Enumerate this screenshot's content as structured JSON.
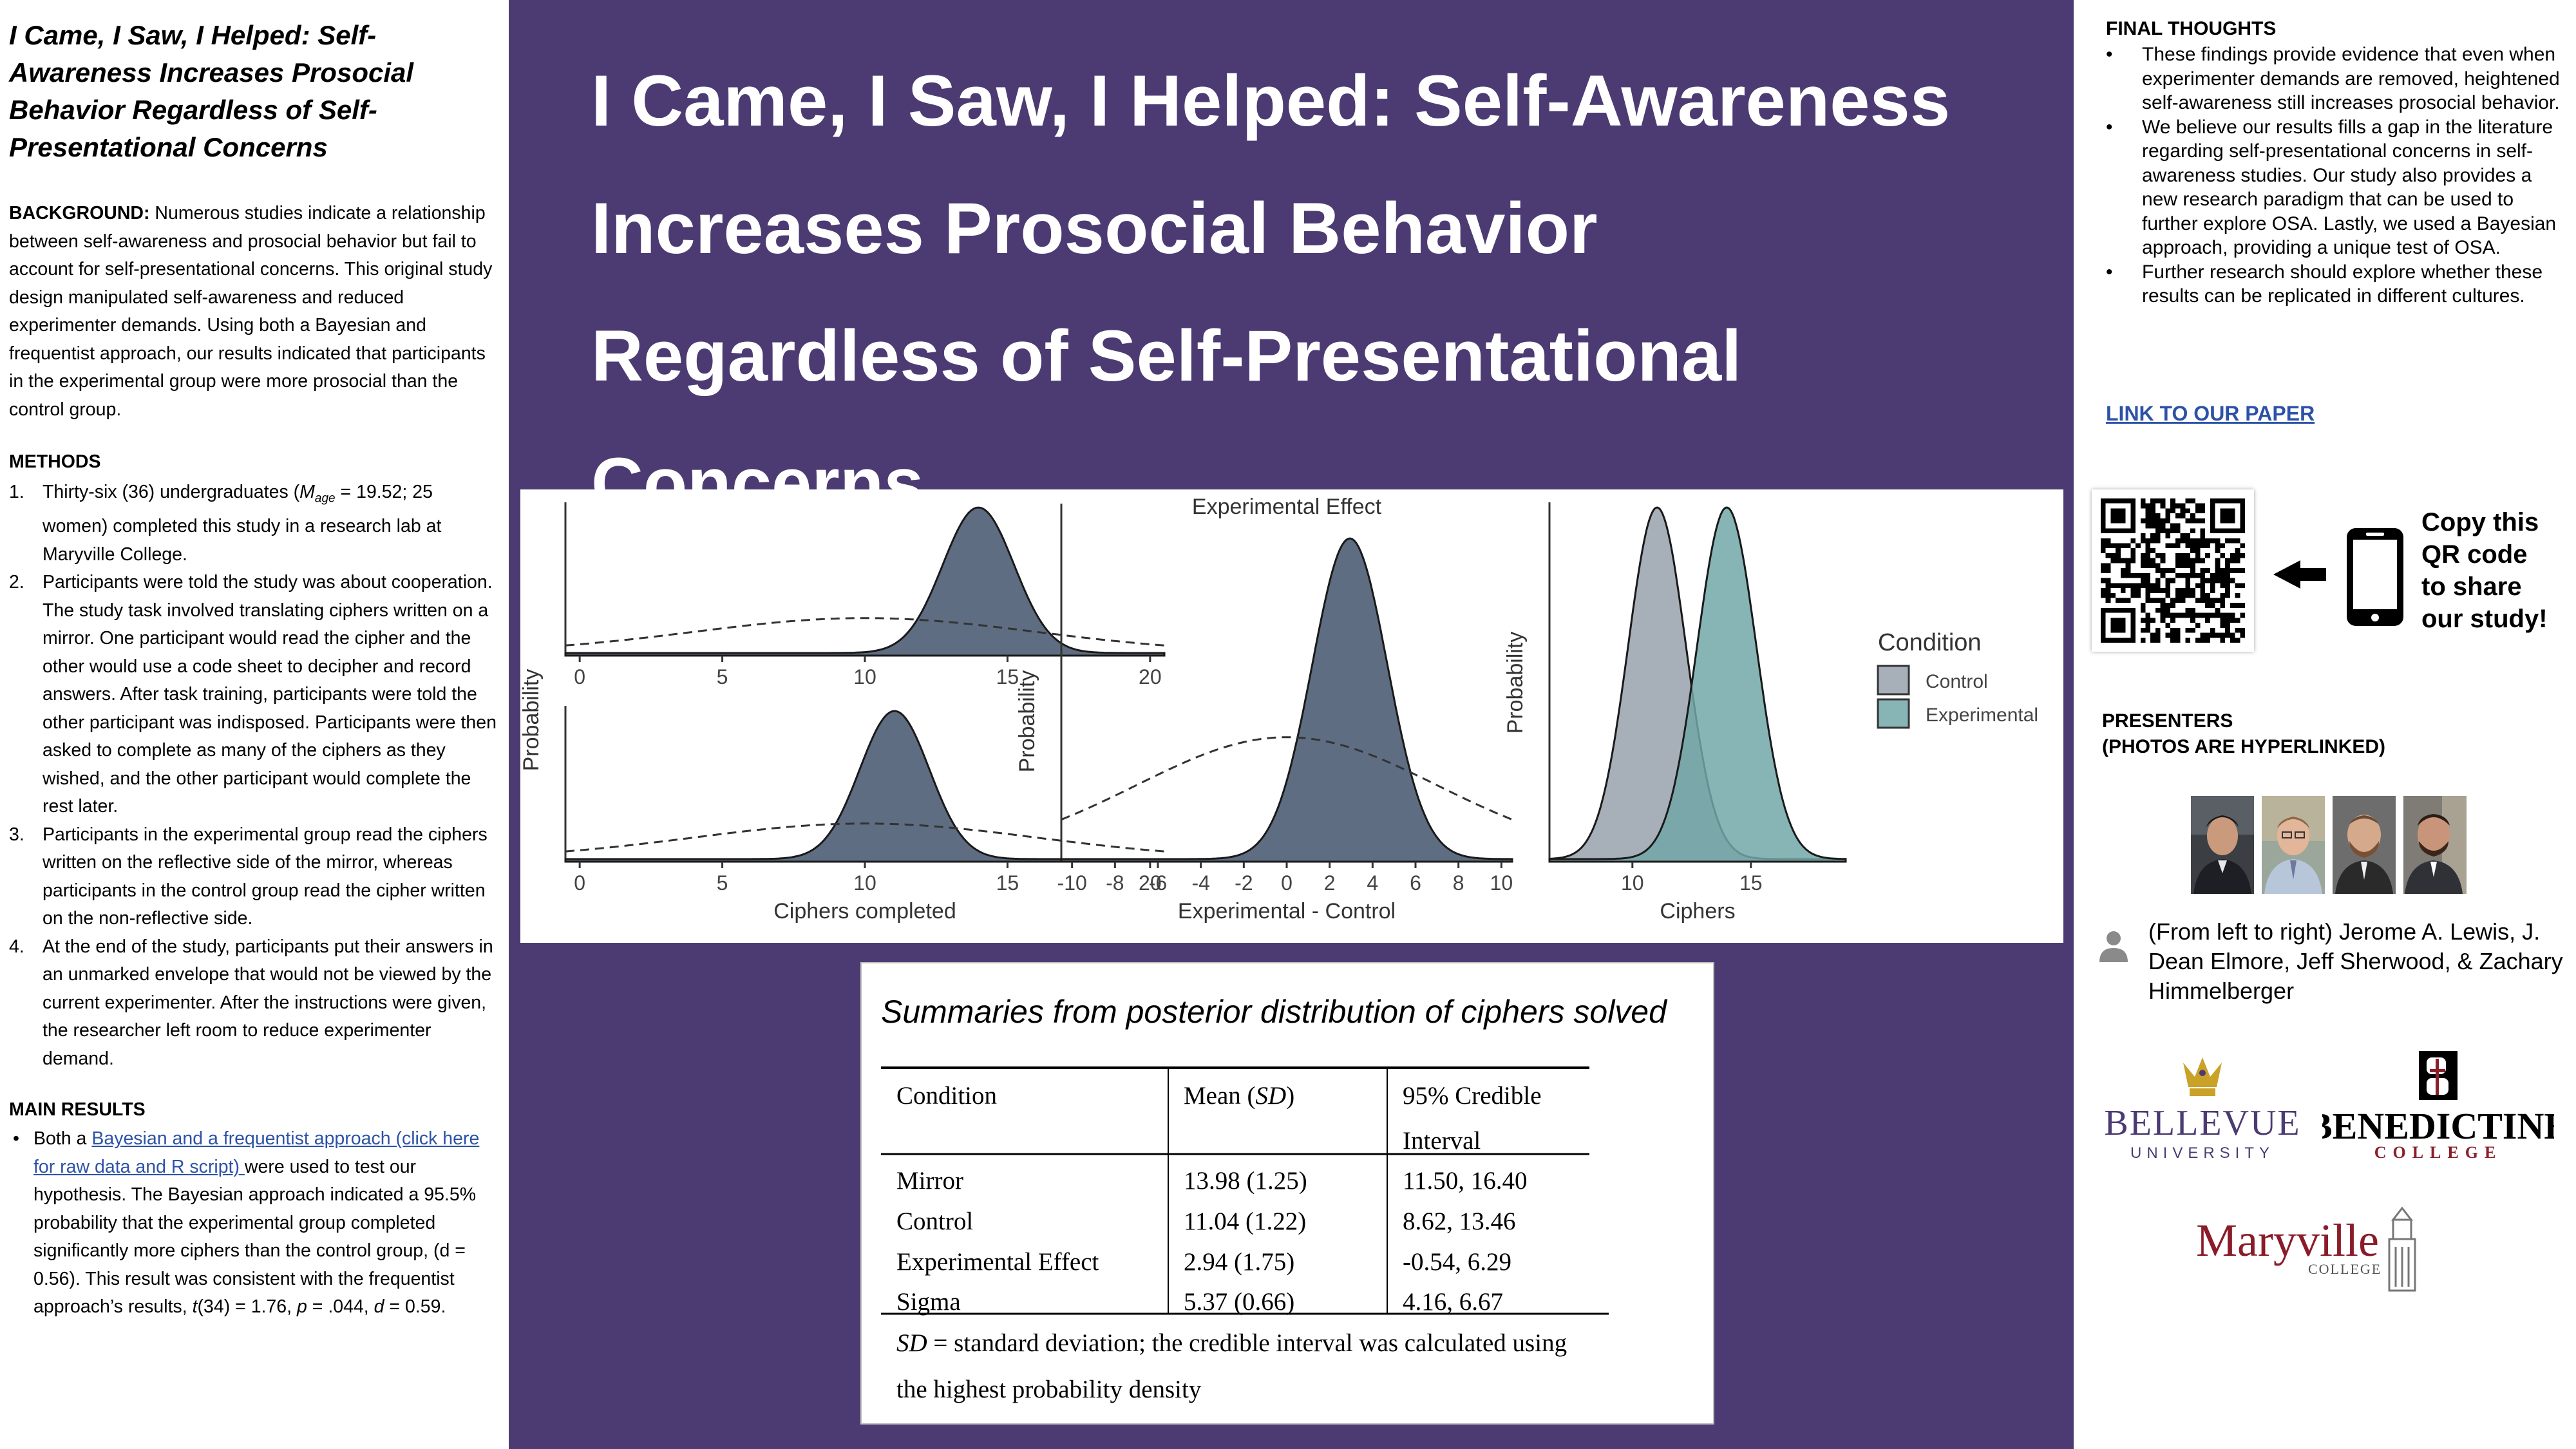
{
  "left": {
    "short_title": "I Came, I Saw, I Helped: Self-Awareness Increases Prosocial Behavior Regardless of Self-Presentational Concerns",
    "background_head": "BACKGROUND:",
    "background_text": "Numerous studies indicate a relationship between self-awareness and prosocial behavior but fail to account for self-presentational concerns. This original study design manipulated self-awareness and reduced experimenter demands. Using both a Bayesian and frequentist approach, our results indicated that participants in the experimental group were more prosocial than the control group.",
    "methods_head": "METHODS",
    "methods": [
      {
        "num": "1.",
        "pre": "Thirty-six (36) undergraduates (",
        "m": "M",
        "sub": "age",
        "post": " = 19.52; 25 women) completed this study in a research lab at Maryville College."
      },
      {
        "num": "2.",
        "text": "Participants were told the study was about cooperation. The study task involved translating ciphers written on a mirror. One participant would read the cipher and the other would use a code sheet to decipher and record answers. After task training, participants were told the other participant was indisposed. Participants were then asked to complete as many of the ciphers as they wished, and the other participant would complete the rest later."
      },
      {
        "num": "3.",
        "text": "Participants in the experimental group read the ciphers written on the reflective side of the mirror, whereas participants in the control group read the cipher written on the non-reflective side."
      },
      {
        "num": "4.",
        "text": "At the end of the study, participants put their answers in an unmarked envelope that would not be viewed by the current experimenter. After the instructions were given, the researcher left room to reduce experimenter demand."
      }
    ],
    "results_head": "MAIN RESULTS",
    "results": {
      "pre": "Both a ",
      "link": "Bayesian and a frequentist approach (click here for raw data and R script) ",
      "post1": "were used to test our hypothesis. The Bayesian approach indicated a 95.5% probability that the experimental group completed significantly more ciphers than the control group, (d = 0.56). This result was consistent with the frequentist approach’s results, ",
      "t": "t",
      "post2": "(34) = 1.76, ",
      "p": "p",
      "post3": " = .044, ",
      "d": "d",
      "post4": " = 0.59."
    }
  },
  "header": {
    "title": "I Came, I Saw, I Helped: Self-Awareness Increases Prosocial Behavior Regardless of Self-Presentational Concerns"
  },
  "chart_data": [
    {
      "type": "area",
      "panel": "top-left",
      "x_ticks": [
        0,
        5,
        10,
        15,
        20
      ],
      "xlim": [
        -0.5,
        20.5
      ],
      "ylabel": "Probability",
      "series": [
        {
          "style": "filled",
          "distribution": "normal",
          "mean": 13.98,
          "sd": 1.25
        },
        {
          "style": "dashed",
          "distribution": "normal",
          "mean": 10,
          "sd": 6
        }
      ]
    },
    {
      "type": "area",
      "panel": "bottom-left",
      "x_ticks": [
        0,
        5,
        10,
        15,
        20
      ],
      "xlim": [
        -0.5,
        20.5
      ],
      "xlabel": "Ciphers completed",
      "series": [
        {
          "style": "filled",
          "distribution": "normal",
          "mean": 11.04,
          "sd": 1.22
        },
        {
          "style": "dashed",
          "distribution": "normal",
          "mean": 10,
          "sd": 6
        }
      ]
    },
    {
      "type": "area",
      "panel": "middle",
      "title": "Experimental Effect",
      "x_ticks": [
        -10,
        -8,
        -6,
        -4,
        -2,
        0,
        2,
        4,
        6,
        8,
        10
      ],
      "xlim": [
        -10.5,
        10.5
      ],
      "xlabel": "Experimental - Control",
      "ylabel": "Probability",
      "series": [
        {
          "style": "filled",
          "distribution": "normal",
          "mean": 2.94,
          "sd": 1.75
        },
        {
          "style": "dashed",
          "distribution": "normal",
          "mean": 0,
          "sd": 7
        }
      ]
    },
    {
      "type": "area",
      "panel": "right",
      "x_ticks": [
        10,
        15
      ],
      "xlim": [
        6.5,
        19
      ],
      "xlabel": "Ciphers",
      "ylabel": "Probability",
      "legend_title": "Condition",
      "legend_placement": "right",
      "series": [
        {
          "name": "Control",
          "color": "#98a1ab",
          "distribution": "normal",
          "mean": 11.04,
          "sd": 1.22
        },
        {
          "name": "Experimental",
          "color": "#72a7a7",
          "distribution": "normal",
          "mean": 13.98,
          "sd": 1.25
        }
      ]
    }
  ],
  "table": {
    "caption": "Summaries from posterior distribution of ciphers solved",
    "headers": {
      "condition": "Condition",
      "mean_pre": "Mean (",
      "mean_sd": "SD",
      "mean_post": ")",
      "ci_line1": "95% Credible",
      "ci_line2": "Interval"
    },
    "rows": [
      {
        "condition": "Mirror",
        "mean": "13.98 (1.25)",
        "ci": "11.50, 16.40"
      },
      {
        "condition": "Control",
        "mean": "11.04 (1.22)",
        "ci": "8.62, 13.46"
      },
      {
        "condition": "Experimental Effect",
        "mean": "2.94 (1.75)",
        "ci": "-0.54, 6.29"
      },
      {
        "condition": "Sigma",
        "mean": "5.37 (0.66)",
        "ci": "4.16, 6.67"
      }
    ],
    "note_sd": "SD",
    "note_line1": " = standard deviation; the credible interval was calculated using",
    "note_line2": "the highest probability density"
  },
  "right": {
    "final_head": "FINAL THOUGHTS",
    "final_items": [
      "These findings provide evidence that even when experimenter demands are removed, heightened self-awareness still increases prosocial behavior.",
      "We believe our results fills a gap in the literature regarding self-presentational concerns in self-awareness studies. Our study also provides a new research paradigm that can be used to further explore OSA. Lastly, we used a Bayesian approach, providing a unique test of OSA.",
      "Further research should explore whether these results can be replicated in different cultures."
    ],
    "paper_link": "LINK TO OUR PAPER",
    "share_text": [
      "Copy this",
      "QR code",
      "to share",
      "our study!"
    ],
    "presenters_head_1": "PRESENTERS",
    "presenters_head_2": "(PHOTOS ARE HYPERLINKED)",
    "presenter_names": "(From left to right) Jerome A. Lewis, J. Dean Elmore, Jeff Sherwood, & Zachary Himmelberger",
    "logos": {
      "bellevue_main": "BELLEVUE",
      "bellevue_sub": "UNIVERSITY",
      "benedictine_main": "BENEDICTINE",
      "benedictine_sub": "COLLEGE",
      "maryville_main": "Maryville",
      "maryville_sub": "COLLEGE"
    }
  },
  "colors": {
    "purple": "#4c3b73",
    "fill_dark": "#5e6d81",
    "control": "#98a1ab",
    "experimental": "#72a7a7",
    "link": "#2c52a8",
    "bellevue": "#4c3b73",
    "bellevue_gold": "#c9a227",
    "benedictine_red": "#8a1f2a",
    "maryville_red": "#8a1c2a"
  }
}
